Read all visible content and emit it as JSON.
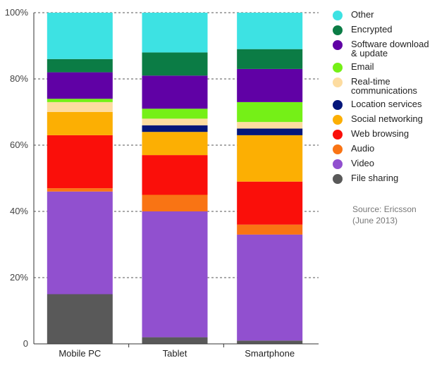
{
  "chart_data": {
    "type": "bar",
    "stacked": true,
    "categories": [
      "Mobile PC",
      "Tablet",
      "Smartphone"
    ],
    "ylim": [
      0,
      100
    ],
    "yticks": [
      0,
      20,
      40,
      60,
      80,
      100
    ],
    "ytick_labels": [
      "0",
      "20%",
      "40%",
      "60%",
      "80%",
      "100%"
    ],
    "grid": "dashed horizontal",
    "legend_placement": "right",
    "series": [
      {
        "name": "File sharing",
        "color": "#595959",
        "values": [
          15,
          2,
          1
        ]
      },
      {
        "name": "Video",
        "color": "#9150cf",
        "values": [
          31,
          38,
          32
        ]
      },
      {
        "name": "Audio",
        "color": "#f97414",
        "values": [
          1,
          5,
          3
        ]
      },
      {
        "name": "Web browsing",
        "color": "#fa0f0a",
        "values": [
          16,
          12,
          13
        ]
      },
      {
        "name": "Social networking",
        "color": "#fcaf03",
        "values": [
          7,
          7,
          14
        ]
      },
      {
        "name": "Location services",
        "color": "#04167a",
        "values": [
          0,
          2,
          2
        ]
      },
      {
        "name": "Real-time\ncommunications",
        "color": "#fddca0",
        "values": [
          3,
          2,
          2
        ]
      },
      {
        "name": "Email",
        "color": "#75f017",
        "values": [
          1,
          3,
          6
        ]
      },
      {
        "name": "Software download\n& update",
        "color": "#6001a5",
        "values": [
          8,
          10,
          10
        ]
      },
      {
        "name": "Encrypted",
        "color": "#0b7c45",
        "values": [
          4,
          7,
          6
        ]
      },
      {
        "name": "Other",
        "color": "#3de2e3",
        "values": [
          14,
          12,
          11
        ]
      }
    ]
  },
  "legend_order": [
    "Other",
    "Encrypted",
    "Software download\n& update",
    "Email",
    "Real-time\ncommunications",
    "Location services",
    "Social networking",
    "Web browsing",
    "Audio",
    "Video",
    "File sharing"
  ],
  "source_note": {
    "line1": "Source: Ericsson",
    "line2": "(June 2013)"
  }
}
